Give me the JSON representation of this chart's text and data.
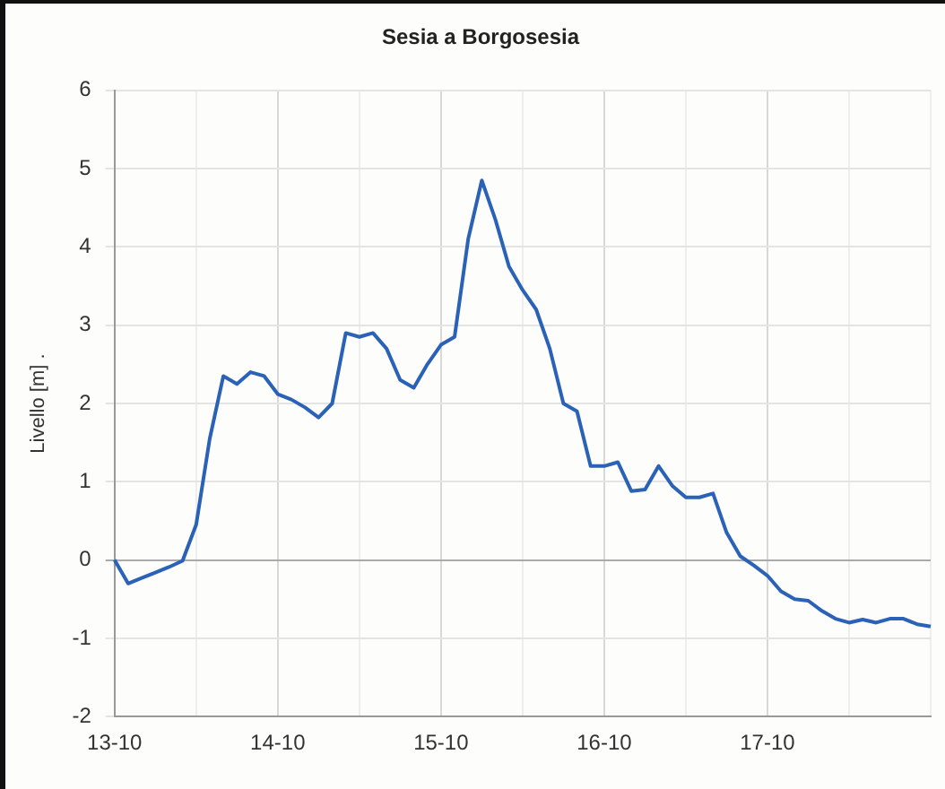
{
  "chart_data": {
    "type": "line",
    "title": "Sesia a Borgosesia",
    "ylabel": "Livello [m] .",
    "categories": [
      "13-10",
      null,
      null,
      null,
      null,
      null,
      null,
      null,
      null,
      null,
      null,
      null,
      "14-10",
      null,
      null,
      null,
      null,
      null,
      null,
      null,
      null,
      null,
      null,
      null,
      "15-10",
      null,
      null,
      null,
      null,
      null,
      null,
      null,
      null,
      null,
      null,
      null,
      "16-10",
      null,
      null,
      null,
      null,
      null,
      null,
      null,
      null,
      null,
      null,
      null,
      "17-10",
      null,
      null,
      null,
      null,
      null,
      null,
      null,
      null,
      null,
      null,
      null,
      null
    ],
    "series": [
      {
        "color": "#2a62b8",
        "values": [
          0,
          -0.3,
          -0.23,
          -0.16,
          -0.09,
          -0.01,
          0.45,
          1.55,
          2.35,
          2.25,
          2.4,
          2.35,
          2.12,
          2.05,
          1.95,
          1.82,
          2.0,
          2.9,
          2.85,
          2.9,
          2.7,
          2.3,
          2.2,
          2.5,
          2.75,
          2.85,
          4.1,
          4.85,
          4.35,
          3.75,
          3.45,
          3.2,
          2.7,
          2.0,
          1.9,
          1.2,
          1.2,
          1.25,
          0.88,
          0.9,
          1.2,
          0.95,
          0.8,
          0.8,
          0.85,
          0.35,
          0.05,
          -0.07,
          -0.2,
          -0.4,
          -0.5,
          -0.52,
          -0.65,
          -0.75,
          -0.8,
          -0.76,
          -0.8,
          -0.75,
          -0.75,
          -0.82,
          -0.85
        ]
      }
    ],
    "ylim": [
      -2,
      6
    ],
    "yticks": [
      -2,
      -1,
      0,
      1,
      2,
      3,
      4,
      5,
      6
    ],
    "grid": true,
    "legend": false,
    "marker": "none",
    "line_style": "solid"
  }
}
